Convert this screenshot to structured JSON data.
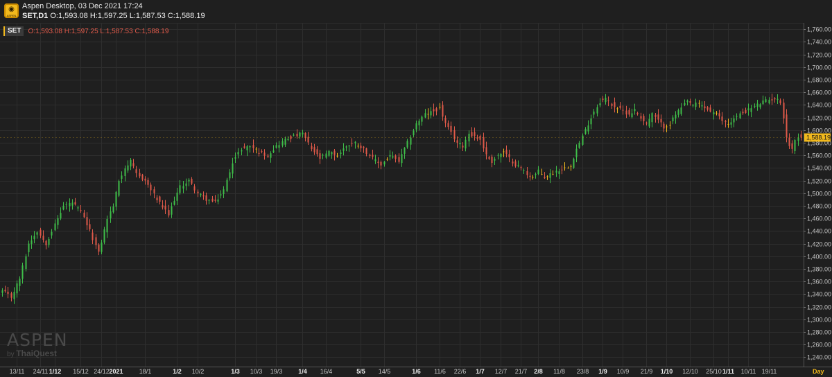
{
  "app": {
    "title": "Aspen Desktop, 03 Dec 2021 17:24",
    "logo_text": "ASPEN"
  },
  "header": {
    "symbol": "SET,D1",
    "ohlc": "O:1,593.08 H:1,597.25 L:1,587.53 C:1,588.19"
  },
  "legend": {
    "symbol": "SET",
    "ohlc": "O:1,593.08 H:1,597.25 L:1,587.53 C:1,588.19"
  },
  "watermark": {
    "brand": "ASPEN",
    "by": "by",
    "vendor": "ThaiQuest"
  },
  "timeframe": "Day",
  "colors": {
    "background": "#1f1f1f",
    "grid": "#2e2e2e",
    "up": "#3fbf4a",
    "down": "#e05a4a",
    "doji": "#f2b91d",
    "text": "#c8c8c8",
    "price_tag": "#f2b91d"
  },
  "chart_data": {
    "type": "candlestick",
    "symbol": "SET",
    "interval": "D1",
    "ylim": [
      1225,
      1770
    ],
    "y_ticks": [
      1240,
      1260,
      1280,
      1300,
      1320,
      1340,
      1360,
      1380,
      1400,
      1420,
      1440,
      1460,
      1480,
      1500,
      1520,
      1540,
      1560,
      1580,
      1600,
      1620,
      1640,
      1660,
      1680,
      1700,
      1720,
      1740,
      1760
    ],
    "y_tick_labels": [
      "1,240.00",
      "1,260.00",
      "1,280.00",
      "1,300.00",
      "1,320.00",
      "1,340.00",
      "1,360.00",
      "1,380.00",
      "1,400.00",
      "1,420.00",
      "1,440.00",
      "1,460.00",
      "1,480.00",
      "1,500.00",
      "1,520.00",
      "1,540.00",
      "1,560.00",
      "1,580.00",
      "1,600.00",
      "1,620.00",
      "1,640.00",
      "1,660.00",
      "1,680.00",
      "1,700.00",
      "1,720.00",
      "1,740.00",
      "1,760.00"
    ],
    "x_labels": [
      {
        "label": "13/11",
        "index": 5,
        "bold": false
      },
      {
        "label": "24/11",
        "index": 13,
        "bold": false
      },
      {
        "label": "1/12",
        "index": 18,
        "bold": true
      },
      {
        "label": "15/12",
        "index": 27,
        "bold": false
      },
      {
        "label": "24/12",
        "index": 34,
        "bold": false
      },
      {
        "label": "2021",
        "index": 39,
        "bold": true
      },
      {
        "label": "18/1",
        "index": 49,
        "bold": false
      },
      {
        "label": "1/2",
        "index": 60,
        "bold": true
      },
      {
        "label": "10/2",
        "index": 67,
        "bold": false
      },
      {
        "label": "1/3",
        "index": 80,
        "bold": true
      },
      {
        "label": "10/3",
        "index": 87,
        "bold": false
      },
      {
        "label": "19/3",
        "index": 94,
        "bold": false
      },
      {
        "label": "1/4",
        "index": 103,
        "bold": true
      },
      {
        "label": "16/4",
        "index": 111,
        "bold": false
      },
      {
        "label": "5/5",
        "index": 123,
        "bold": true
      },
      {
        "label": "14/5",
        "index": 131,
        "bold": false
      },
      {
        "label": "1/6",
        "index": 142,
        "bold": true
      },
      {
        "label": "11/6",
        "index": 150,
        "bold": false
      },
      {
        "label": "22/6",
        "index": 157,
        "bold": false
      },
      {
        "label": "1/7",
        "index": 164,
        "bold": true
      },
      {
        "label": "12/7",
        "index": 171,
        "bold": false
      },
      {
        "label": "21/7",
        "index": 178,
        "bold": false
      },
      {
        "label": "2/8",
        "index": 184,
        "bold": true
      },
      {
        "label": "11/8",
        "index": 191,
        "bold": false
      },
      {
        "label": "23/8",
        "index": 199,
        "bold": false
      },
      {
        "label": "1/9",
        "index": 206,
        "bold": true
      },
      {
        "label": "10/9",
        "index": 213,
        "bold": false
      },
      {
        "label": "21/9",
        "index": 221,
        "bold": false
      },
      {
        "label": "1/10",
        "index": 228,
        "bold": true
      },
      {
        "label": "12/10",
        "index": 236,
        "bold": false
      },
      {
        "label": "25/10",
        "index": 244,
        "bold": false
      },
      {
        "label": "1/11",
        "index": 249,
        "bold": true
      },
      {
        "label": "10/11",
        "index": 256,
        "bold": false
      },
      {
        "label": "19/11",
        "index": 263,
        "bold": false
      }
    ],
    "last_price": 1588.19,
    "last_price_label": "1,588.19",
    "close_anchors": [
      [
        0,
        1345
      ],
      [
        3,
        1335
      ],
      [
        6,
        1365
      ],
      [
        9,
        1420
      ],
      [
        12,
        1440
      ],
      [
        15,
        1420
      ],
      [
        18,
        1450
      ],
      [
        21,
        1480
      ],
      [
        24,
        1485
      ],
      [
        27,
        1470
      ],
      [
        30,
        1440
      ],
      [
        33,
        1405
      ],
      [
        36,
        1460
      ],
      [
        38,
        1480
      ],
      [
        40,
        1520
      ],
      [
        42,
        1540
      ],
      [
        44,
        1550
      ],
      [
        46,
        1530
      ],
      [
        49,
        1520
      ],
      [
        51,
        1505
      ],
      [
        53,
        1490
      ],
      [
        55,
        1478
      ],
      [
        57,
        1465
      ],
      [
        59,
        1490
      ],
      [
        61,
        1510
      ],
      [
        64,
        1520
      ],
      [
        67,
        1500
      ],
      [
        70,
        1490
      ],
      [
        73,
        1485
      ],
      [
        76,
        1505
      ],
      [
        79,
        1550
      ],
      [
        82,
        1570
      ],
      [
        85,
        1575
      ],
      [
        88,
        1565
      ],
      [
        91,
        1560
      ],
      [
        94,
        1575
      ],
      [
        97,
        1585
      ],
      [
        100,
        1590
      ],
      [
        103,
        1595
      ],
      [
        106,
        1570
      ],
      [
        109,
        1555
      ],
      [
        112,
        1565
      ],
      [
        115,
        1560
      ],
      [
        118,
        1575
      ],
      [
        121,
        1580
      ],
      [
        124,
        1570
      ],
      [
        127,
        1555
      ],
      [
        130,
        1545
      ],
      [
        133,
        1560
      ],
      [
        136,
        1550
      ],
      [
        139,
        1580
      ],
      [
        142,
        1610
      ],
      [
        145,
        1625
      ],
      [
        148,
        1630
      ],
      [
        150,
        1635
      ],
      [
        152,
        1610
      ],
      [
        154,
        1595
      ],
      [
        156,
        1580
      ],
      [
        158,
        1575
      ],
      [
        160,
        1595
      ],
      [
        162,
        1590
      ],
      [
        164,
        1585
      ],
      [
        166,
        1560
      ],
      [
        168,
        1550
      ],
      [
        170,
        1560
      ],
      [
        172,
        1565
      ],
      [
        174,
        1555
      ],
      [
        176,
        1545
      ],
      [
        178,
        1540
      ],
      [
        180,
        1530
      ],
      [
        182,
        1525
      ],
      [
        184,
        1535
      ],
      [
        186,
        1525
      ],
      [
        188,
        1530
      ],
      [
        190,
        1535
      ],
      [
        193,
        1540
      ],
      [
        195,
        1545
      ],
      [
        197,
        1570
      ],
      [
        199,
        1590
      ],
      [
        201,
        1610
      ],
      [
        203,
        1630
      ],
      [
        205,
        1645
      ],
      [
        207,
        1650
      ],
      [
        209,
        1640
      ],
      [
        211,
        1635
      ],
      [
        213,
        1630
      ],
      [
        215,
        1625
      ],
      [
        217,
        1632
      ],
      [
        219,
        1620
      ],
      [
        221,
        1610
      ],
      [
        223,
        1625
      ],
      [
        225,
        1615
      ],
      [
        227,
        1605
      ],
      [
        229,
        1610
      ],
      [
        231,
        1625
      ],
      [
        233,
        1635
      ],
      [
        235,
        1645
      ],
      [
        237,
        1640
      ],
      [
        239,
        1642
      ],
      [
        241,
        1635
      ],
      [
        243,
        1630
      ],
      [
        245,
        1625
      ],
      [
        247,
        1615
      ],
      [
        249,
        1610
      ],
      [
        251,
        1618
      ],
      [
        253,
        1625
      ],
      [
        255,
        1630
      ],
      [
        257,
        1635
      ],
      [
        259,
        1640
      ],
      [
        261,
        1645
      ],
      [
        263,
        1648
      ],
      [
        265,
        1650
      ],
      [
        267,
        1645
      ],
      [
        268,
        1620
      ],
      [
        269,
        1590
      ],
      [
        270,
        1575
      ],
      [
        271,
        1570
      ],
      [
        272,
        1585
      ],
      [
        274,
        1588.19
      ]
    ]
  }
}
